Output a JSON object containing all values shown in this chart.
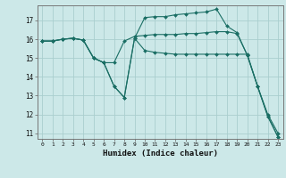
{
  "xlabel": "Humidex (Indice chaleur)",
  "background_color": "#cce8e8",
  "grid_color": "#aacece",
  "line_color": "#1a6e64",
  "xlim": [
    -0.5,
    23.5
  ],
  "ylim": [
    10.7,
    17.8
  ],
  "yticks": [
    11,
    12,
    13,
    14,
    15,
    16,
    17
  ],
  "xticks": [
    0,
    1,
    2,
    3,
    4,
    5,
    6,
    7,
    8,
    9,
    10,
    11,
    12,
    13,
    14,
    15,
    16,
    17,
    18,
    19,
    20,
    21,
    22,
    23
  ],
  "series": [
    {
      "x": [
        0,
        1,
        2,
        3,
        4,
        5,
        6,
        7,
        8,
        9,
        10,
        11,
        12,
        13,
        14,
        15,
        16,
        17,
        18,
        19,
        20,
        21,
        22,
        23
      ],
      "y": [
        15.9,
        15.9,
        16.0,
        16.05,
        15.95,
        15.0,
        14.75,
        13.5,
        12.9,
        16.05,
        17.15,
        17.2,
        17.2,
        17.3,
        17.35,
        17.4,
        17.45,
        17.6,
        16.7,
        16.35,
        15.15,
        13.5,
        11.9,
        10.8
      ]
    },
    {
      "x": [
        0,
        1,
        2,
        3,
        4,
        5,
        6,
        7,
        8,
        9,
        10,
        11,
        12,
        13,
        14,
        15,
        16,
        17,
        18,
        19,
        20,
        21,
        22,
        23
      ],
      "y": [
        15.9,
        15.9,
        16.0,
        16.05,
        15.95,
        15.0,
        14.75,
        14.75,
        15.9,
        16.15,
        16.2,
        16.25,
        16.25,
        16.25,
        16.3,
        16.3,
        16.35,
        16.4,
        16.4,
        16.3,
        15.15,
        13.5,
        12.0,
        11.0
      ]
    },
    {
      "x": [
        0,
        1,
        2,
        3,
        4,
        5,
        6,
        7,
        8,
        9,
        10,
        11,
        12,
        13,
        14,
        15,
        16,
        17,
        18,
        19,
        20,
        21,
        22,
        23
      ],
      "y": [
        15.9,
        15.9,
        16.0,
        16.05,
        15.95,
        15.0,
        14.75,
        13.5,
        12.9,
        16.05,
        15.4,
        15.3,
        15.25,
        15.2,
        15.2,
        15.2,
        15.2,
        15.2,
        15.2,
        15.2,
        15.2,
        13.5,
        11.9,
        10.8
      ]
    }
  ]
}
